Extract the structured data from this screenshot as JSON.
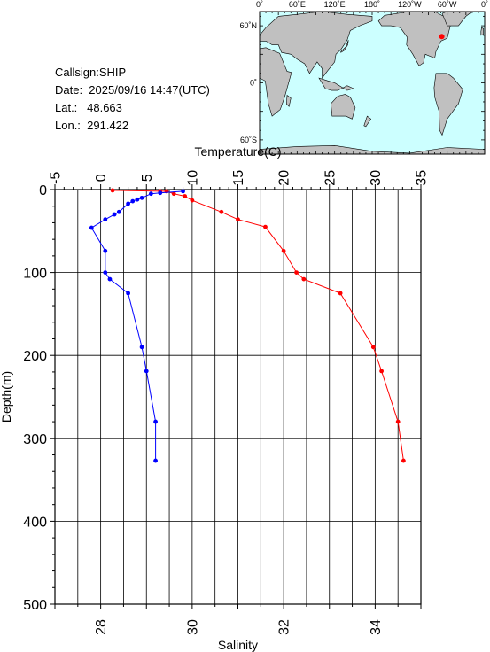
{
  "info": {
    "callsign": "Callsign:SHIP",
    "date": "Date:  2025/09/16 14:47(UTC)",
    "lat": "Lat.:   48.663",
    "lon": "Lon.:  291.422"
  },
  "map": {
    "lon_labels": [
      "0˚",
      "60˚E",
      "120˚E",
      "180˚",
      "120˚W",
      "60˚W",
      "0˚"
    ],
    "lat_labels": [
      "60˚N",
      "0˚",
      "60˚S"
    ],
    "station": {
      "lon": 291.422,
      "lat": 48.663
    },
    "ocean_color": "#ccffff",
    "land_color": "#c0c0c0",
    "marker_color": "#ff0000"
  },
  "chart_data": {
    "type": "line",
    "ylabel": "Depth(m)",
    "y_ticks": [
      "0",
      "100",
      "200",
      "300",
      "400",
      "500"
    ],
    "ylim": [
      0,
      500
    ],
    "y_inverted": true,
    "top_axis": {
      "label": "Temperature(C)",
      "range": [
        -5,
        35
      ],
      "ticks": [
        "-5",
        "0",
        "5",
        "10",
        "15",
        "20",
        "25",
        "30",
        "35"
      ]
    },
    "bottom_axis": {
      "label": "Salinity",
      "range": [
        27,
        35
      ],
      "ticks": [
        "28",
        "30",
        "32",
        "34"
      ]
    },
    "grid": true,
    "series": [
      {
        "axis": "top",
        "color": "#ff0000",
        "points": [
          [
            1.3,
            1
          ],
          [
            6.5,
            2
          ],
          [
            7.2,
            2
          ],
          [
            8.0,
            5
          ],
          [
            9.2,
            8
          ],
          [
            10.0,
            13
          ],
          [
            13.2,
            27
          ],
          [
            15.0,
            36
          ],
          [
            18.0,
            45
          ],
          [
            20.0,
            74
          ],
          [
            21.4,
            100
          ],
          [
            22.2,
            108
          ],
          [
            26.2,
            125
          ],
          [
            29.8,
            190
          ],
          [
            30.7,
            219
          ],
          [
            32.5,
            280
          ],
          [
            33.1,
            327
          ]
        ]
      },
      {
        "axis": "bottom",
        "color": "#0000ff",
        "points": [
          [
            29.8,
            2
          ],
          [
            29.3,
            4
          ],
          [
            29.1,
            5
          ],
          [
            28.9,
            10
          ],
          [
            28.8,
            12
          ],
          [
            28.7,
            14
          ],
          [
            28.6,
            17
          ],
          [
            28.4,
            27
          ],
          [
            28.3,
            30
          ],
          [
            28.1,
            36
          ],
          [
            27.8,
            46
          ],
          [
            28.1,
            74
          ],
          [
            28.1,
            100
          ],
          [
            28.2,
            108
          ],
          [
            28.6,
            125
          ],
          [
            28.9,
            190
          ],
          [
            29.0,
            219
          ],
          [
            29.2,
            280
          ],
          [
            29.2,
            327
          ]
        ]
      }
    ]
  }
}
